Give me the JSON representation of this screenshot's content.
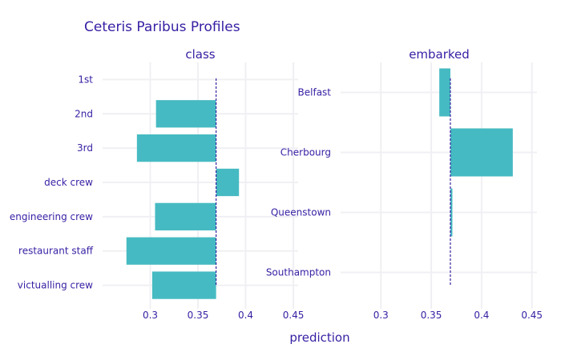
{
  "chart_data": {
    "type": "bar",
    "orientation": "horizontal",
    "title": "Ceteris Paribus Profiles",
    "xlabel": "prediction",
    "baseline": 0.369,
    "colors": {
      "bar": "#46bac2",
      "text": "#371ea3",
      "baseline": "#371ea3",
      "grid": "#f0f0f4"
    },
    "panels": [
      {
        "title": "class",
        "xlim": [
          0.25,
          0.455
        ],
        "xticks": [
          "0.3",
          "0.35",
          "0.4",
          "0.45"
        ],
        "categories": [
          "1st",
          "2nd",
          "3rd",
          "deck crew",
          "engineering crew",
          "restaurant staff",
          "victualling crew"
        ],
        "values": [
          0.369,
          0.306,
          0.286,
          0.393,
          0.305,
          0.275,
          0.302
        ]
      },
      {
        "title": "embarked",
        "xlim": [
          0.26,
          0.455
        ],
        "xticks": [
          "0.3",
          "0.35",
          "0.4",
          "0.45"
        ],
        "categories": [
          "Belfast",
          "Cherbourg",
          "Queenstown",
          "Southampton"
        ],
        "values": [
          0.358,
          0.431,
          0.371,
          0.369
        ]
      }
    ]
  }
}
